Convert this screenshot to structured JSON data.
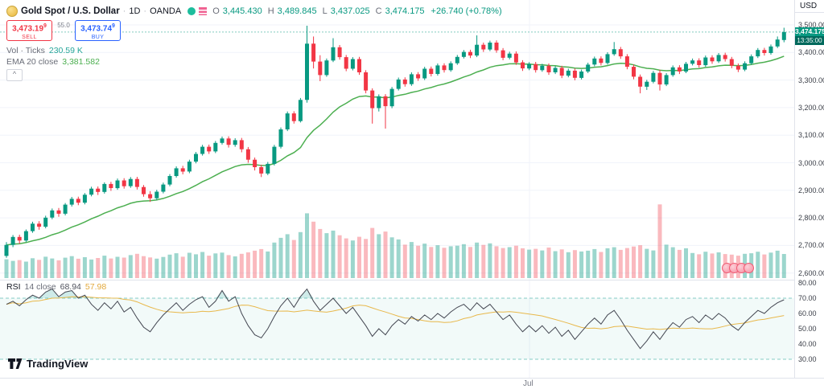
{
  "header": {
    "symbol_title": "Gold Spot / U.S. Dollar",
    "separator": "·",
    "interval": "1D",
    "exchange": "OANDA",
    "ohlc": {
      "o_label": "O",
      "o": "3,445.430",
      "h_label": "H",
      "h": "3,489.845",
      "l_label": "L",
      "l": "3,437.025",
      "c_label": "C",
      "c": "3,474.175",
      "change": "+26.740 (+0.78%)"
    }
  },
  "trade_buttons": {
    "sell_price": "3,473.19",
    "sell_sup": "9",
    "sell_label": "SELL",
    "spread": "55.0",
    "buy_price": "3,473.74",
    "buy_sup": "9",
    "buy_label": "BUY"
  },
  "indicators": {
    "volume": {
      "label": "Vol · Ticks",
      "value": "230.59 K"
    },
    "ema": {
      "label": "EMA 20 close",
      "value": "3,381.582"
    },
    "rsi": {
      "name": "RSI",
      "params": "14 close",
      "value": "68.94",
      "ma_value": "57.98"
    },
    "collapse_icon": "^"
  },
  "axes": {
    "currency": "USD",
    "time_label": "Jul",
    "price_labels": [
      {
        "text": "3,500.000",
        "value": 3500
      },
      {
        "text": "3,400.000",
        "value": 3400
      },
      {
        "text": "3,300.000",
        "value": 3300
      },
      {
        "text": "3,200.000",
        "value": 3200
      },
      {
        "text": "3,100.000",
        "value": 3100
      },
      {
        "text": "3,000.000",
        "value": 3000
      },
      {
        "text": "2,900.000",
        "value": 2900
      },
      {
        "text": "2,800.000",
        "value": 2800
      },
      {
        "text": "2,700.000",
        "value": 2700
      },
      {
        "text": "2,600.000",
        "value": 2600
      }
    ],
    "rsi_labels": [
      {
        "text": "80.00",
        "value": 80
      },
      {
        "text": "70.00",
        "value": 70
      },
      {
        "text": "60.00",
        "value": 60
      },
      {
        "text": "50.00",
        "value": 50
      },
      {
        "text": "40.00",
        "value": 40
      },
      {
        "text": "30.00",
        "value": 30
      }
    ]
  },
  "price_badge": {
    "price": "3,474.175",
    "countdown": "13:35:00"
  },
  "footer": {
    "logo_text": "TradingView"
  },
  "colors": {
    "up": "#089981",
    "down": "#f23645",
    "vol_up": "rgba(8,153,129,0.40)",
    "vol_down": "rgba(242,54,69,0.35)",
    "ema_line": "#4caf50",
    "rsi_line": "#434651",
    "rsi_ma_line": "#e8b84b",
    "rsi_level": "#26a69a",
    "grid": "#f0f3fa",
    "divider": "#e0e3eb",
    "badge_bg": "#089981",
    "countdown_bg": "#00695c",
    "sell": "#f23645",
    "buy": "#2962ff"
  },
  "chart_data": {
    "type": "candlestick",
    "title": "Gold Spot / U.S. Dollar, 1D, OANDA",
    "interval": "1D",
    "ylim": [
      2580,
      3520
    ],
    "rsi_ylim": [
      25,
      85
    ],
    "rsi_levels": [
      70,
      30
    ],
    "ema_period": 20,
    "rsi_ma_period": 14,
    "volume_unit": "K ticks",
    "last_close": 3474.175,
    "candles": [
      [
        2662,
        2712,
        2655,
        2702
      ],
      [
        2702,
        2738,
        2694,
        2731
      ],
      [
        2731,
        2739,
        2706,
        2718
      ],
      [
        2718,
        2758,
        2712,
        2752
      ],
      [
        2752,
        2786,
        2746,
        2779
      ],
      [
        2779,
        2788,
        2757,
        2768
      ],
      [
        2768,
        2808,
        2762,
        2801
      ],
      [
        2801,
        2834,
        2795,
        2827
      ],
      [
        2827,
        2836,
        2804,
        2815
      ],
      [
        2815,
        2854,
        2809,
        2848
      ],
      [
        2848,
        2876,
        2841,
        2869
      ],
      [
        2869,
        2877,
        2846,
        2855
      ],
      [
        2855,
        2890,
        2849,
        2884
      ],
      [
        2884,
        2913,
        2878,
        2906
      ],
      [
        2906,
        2914,
        2883,
        2894
      ],
      [
        2894,
        2929,
        2888,
        2923
      ],
      [
        2923,
        2931,
        2898,
        2908
      ],
      [
        2908,
        2943,
        2902,
        2936
      ],
      [
        2936,
        2944,
        2906,
        2915
      ],
      [
        2915,
        2948,
        2909,
        2941
      ],
      [
        2941,
        2949,
        2903,
        2912
      ],
      [
        2912,
        2919,
        2877,
        2886
      ],
      [
        2886,
        2897,
        2858,
        2871
      ],
      [
        2871,
        2902,
        2864,
        2895
      ],
      [
        2895,
        2928,
        2889,
        2921
      ],
      [
        2921,
        2959,
        2915,
        2952
      ],
      [
        2952,
        2987,
        2946,
        2980
      ],
      [
        2980,
        2989,
        2958,
        2968
      ],
      [
        2968,
        3011,
        2962,
        3004
      ],
      [
        3004,
        3039,
        2998,
        3032
      ],
      [
        3032,
        3065,
        3026,
        3058
      ],
      [
        3058,
        3066,
        3032,
        3041
      ],
      [
        3041,
        3079,
        3035,
        3072
      ],
      [
        3072,
        3095,
        3066,
        3088
      ],
      [
        3088,
        3096,
        3055,
        3065
      ],
      [
        3065,
        3089,
        3058,
        3082
      ],
      [
        3082,
        3090,
        3038,
        3049
      ],
      [
        3049,
        3057,
        3000,
        3011
      ],
      [
        3011,
        3019,
        2972,
        2984
      ],
      [
        2984,
        2993,
        2948,
        2961
      ],
      [
        2961,
        3003,
        2955,
        2996
      ],
      [
        2996,
        3065,
        2990,
        3058
      ],
      [
        3058,
        3128,
        3052,
        3121
      ],
      [
        3121,
        3186,
        3115,
        3179
      ],
      [
        3179,
        3187,
        3142,
        3151
      ],
      [
        3151,
        3235,
        3146,
        3228
      ],
      [
        3228,
        3497,
        3218,
        3432
      ],
      [
        3432,
        3458,
        3342,
        3367
      ],
      [
        3367,
        3390,
        3296,
        3318
      ],
      [
        3318,
        3378,
        3312,
        3371
      ],
      [
        3371,
        3452,
        3365,
        3419
      ],
      [
        3419,
        3427,
        3374,
        3383
      ],
      [
        3383,
        3391,
        3332,
        3341
      ],
      [
        3341,
        3383,
        3335,
        3376
      ],
      [
        3376,
        3384,
        3319,
        3328
      ],
      [
        3328,
        3336,
        3252,
        3262
      ],
      [
        3262,
        3270,
        3142,
        3198
      ],
      [
        3198,
        3248,
        3186,
        3241
      ],
      [
        3241,
        3249,
        3124,
        3205
      ],
      [
        3205,
        3275,
        3198,
        3268
      ],
      [
        3268,
        3309,
        3262,
        3302
      ],
      [
        3302,
        3310,
        3276,
        3285
      ],
      [
        3285,
        3328,
        3279,
        3321
      ],
      [
        3321,
        3329,
        3297,
        3306
      ],
      [
        3306,
        3348,
        3300,
        3341
      ],
      [
        3341,
        3349,
        3313,
        3322
      ],
      [
        3322,
        3360,
        3316,
        3353
      ],
      [
        3353,
        3361,
        3327,
        3336
      ],
      [
        3336,
        3368,
        3330,
        3361
      ],
      [
        3361,
        3391,
        3355,
        3384
      ],
      [
        3384,
        3409,
        3378,
        3402
      ],
      [
        3402,
        3410,
        3380,
        3389
      ],
      [
        3389,
        3462,
        3383,
        3428
      ],
      [
        3428,
        3436,
        3402,
        3411
      ],
      [
        3411,
        3443,
        3405,
        3436
      ],
      [
        3436,
        3444,
        3399,
        3408
      ],
      [
        3408,
        3416,
        3372,
        3381
      ],
      [
        3381,
        3403,
        3375,
        3396
      ],
      [
        3396,
        3404,
        3355,
        3364
      ],
      [
        3364,
        3372,
        3333,
        3342
      ],
      [
        3342,
        3365,
        3336,
        3358
      ],
      [
        3358,
        3366,
        3327,
        3336
      ],
      [
        3336,
        3359,
        3330,
        3352
      ],
      [
        3352,
        3360,
        3319,
        3328
      ],
      [
        3328,
        3351,
        3322,
        3344
      ],
      [
        3344,
        3352,
        3307,
        3316
      ],
      [
        3316,
        3341,
        3310,
        3334
      ],
      [
        3334,
        3342,
        3299,
        3308
      ],
      [
        3308,
        3338,
        3302,
        3331
      ],
      [
        3331,
        3363,
        3325,
        3356
      ],
      [
        3356,
        3385,
        3350,
        3378
      ],
      [
        3378,
        3386,
        3353,
        3362
      ],
      [
        3362,
        3401,
        3356,
        3394
      ],
      [
        3394,
        3438,
        3388,
        3412
      ],
      [
        3412,
        3420,
        3377,
        3386
      ],
      [
        3386,
        3394,
        3339,
        3348
      ],
      [
        3348,
        3356,
        3303,
        3312
      ],
      [
        3312,
        3320,
        3252,
        3276
      ],
      [
        3276,
        3301,
        3264,
        3294
      ],
      [
        3294,
        3333,
        3288,
        3326
      ],
      [
        3326,
        3338,
        3262,
        3284
      ],
      [
        3284,
        3325,
        3278,
        3318
      ],
      [
        3318,
        3353,
        3312,
        3346
      ],
      [
        3346,
        3354,
        3322,
        3331
      ],
      [
        3331,
        3366,
        3325,
        3359
      ],
      [
        3359,
        3378,
        3353,
        3371
      ],
      [
        3371,
        3379,
        3345,
        3354
      ],
      [
        3354,
        3389,
        3348,
        3382
      ],
      [
        3382,
        3390,
        3359,
        3368
      ],
      [
        3368,
        3398,
        3362,
        3391
      ],
      [
        3391,
        3399,
        3367,
        3376
      ],
      [
        3376,
        3384,
        3343,
        3352
      ],
      [
        3352,
        3360,
        3329,
        3338
      ],
      [
        3338,
        3368,
        3332,
        3361
      ],
      [
        3361,
        3393,
        3355,
        3386
      ],
      [
        3386,
        3416,
        3380,
        3409
      ],
      [
        3409,
        3417,
        3389,
        3398
      ],
      [
        3398,
        3429,
        3392,
        3422
      ],
      [
        3422,
        3458,
        3416,
        3447
      ],
      [
        3445.43,
        3489.845,
        3437.025,
        3474.175
      ]
    ],
    "volumes_k": [
      180,
      165,
      172,
      158,
      190,
      175,
      205,
      188,
      170,
      195,
      210,
      185,
      200,
      178,
      192,
      215,
      188,
      204,
      196,
      220,
      232,
      210,
      198,
      186,
      202,
      225,
      238,
      205,
      242,
      228,
      250,
      215,
      236,
      244,
      220,
      208,
      232,
      246,
      262,
      278,
      255,
      340,
      385,
      420,
      365,
      440,
      620,
      540,
      470,
      430,
      455,
      410,
      380,
      360,
      395,
      375,
      480,
      420,
      445,
      390,
      370,
      320,
      345,
      310,
      330,
      298,
      315,
      290,
      305,
      310,
      325,
      298,
      340,
      318,
      332,
      305,
      288,
      296,
      310,
      285,
      272,
      280,
      265,
      292,
      258,
      275,
      248,
      268,
      255,
      262,
      278,
      250,
      285,
      295,
      270,
      288,
      302,
      315,
      280,
      265,
      705,
      320,
      295,
      270,
      285,
      240,
      228,
      252,
      235,
      246,
      230,
      225,
      215,
      232,
      238,
      252,
      226,
      244,
      262,
      230.59
    ],
    "rsi": [
      66,
      68,
      65,
      69,
      72,
      70,
      74,
      76,
      71,
      74,
      75,
      70,
      72,
      66,
      62,
      67,
      63,
      68,
      61,
      64,
      57,
      51,
      48,
      54,
      59,
      63,
      67,
      62,
      66,
      69,
      71,
      64,
      68,
      75,
      68,
      71,
      60,
      52,
      46,
      44,
      50,
      58,
      65,
      70,
      64,
      71,
      76,
      68,
      62,
      66,
      70,
      65,
      60,
      64,
      58,
      52,
      45,
      50,
      46,
      52,
      56,
      53,
      58,
      55,
      59,
      56,
      60,
      57,
      61,
      64,
      66,
      62,
      67,
      63,
      66,
      61,
      56,
      59,
      53,
      48,
      52,
      48,
      52,
      47,
      51,
      45,
      49,
      43,
      48,
      53,
      57,
      53,
      59,
      62,
      56,
      49,
      43,
      37,
      42,
      48,
      43,
      49,
      54,
      51,
      56,
      58,
      54,
      59,
      56,
      60,
      57,
      52,
      49,
      54,
      58,
      62,
      60,
      64,
      67,
      68.94
    ]
  }
}
